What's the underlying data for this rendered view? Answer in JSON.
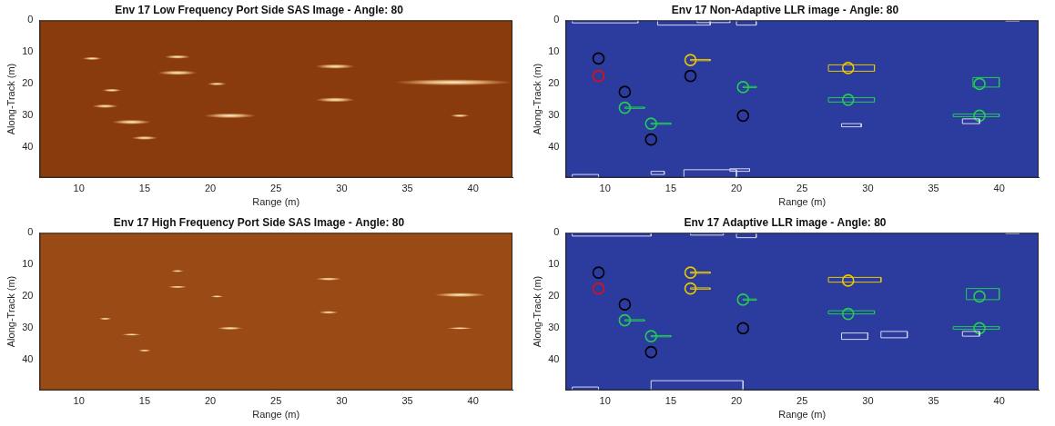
{
  "chart_data": [
    {
      "type": "image",
      "title": "Env 17 Low Frequency Port Side SAS Image - Angle: 80",
      "x_label": "Range (m)",
      "y_label": "Along-Track (m)",
      "xlim": [
        7,
        43
      ],
      "ylim": [
        49.5,
        0
      ],
      "xticks": [
        10,
        15,
        20,
        25,
        30,
        35,
        40
      ],
      "yticks": [
        0,
        10,
        20,
        30,
        40
      ],
      "grid": false,
      "highlights": [
        {
          "x": 11,
          "y": 12,
          "length": 1.5,
          "width": 1.0
        },
        {
          "x": 12.5,
          "y": 22,
          "length": 1.5,
          "width": 1.0
        },
        {
          "x": 12,
          "y": 27,
          "length": 2,
          "width": 1.2
        },
        {
          "x": 14,
          "y": 32,
          "length": 3,
          "width": 1.5
        },
        {
          "x": 15,
          "y": 37,
          "length": 2,
          "width": 1.2
        },
        {
          "x": 17.5,
          "y": 11.5,
          "length": 2,
          "width": 1.2
        },
        {
          "x": 17.5,
          "y": 16.5,
          "length": 3,
          "width": 1.5
        },
        {
          "x": 20.5,
          "y": 20,
          "length": 1.5,
          "width": 1.0
        },
        {
          "x": 21.5,
          "y": 30,
          "length": 4,
          "width": 1.6
        },
        {
          "x": 29.5,
          "y": 14.5,
          "length": 3,
          "width": 1.5
        },
        {
          "x": 29.5,
          "y": 25,
          "length": 3,
          "width": 1.5
        },
        {
          "x": 38.5,
          "y": 19.5,
          "length": 9,
          "width": 2.0
        },
        {
          "x": 39,
          "y": 30,
          "length": 1.5,
          "width": 1.0
        }
      ]
    },
    {
      "type": "scatter",
      "title": "Env 17 Non-Adaptive LLR image - Angle: 80",
      "x_label": "Range (m)",
      "y_label": "Along-Track (m)",
      "xlim": [
        7,
        43
      ],
      "ylim": [
        49.5,
        0
      ],
      "xticks": [
        10,
        15,
        20,
        25,
        30,
        35,
        40
      ],
      "yticks": [
        0,
        10,
        20,
        30,
        40
      ],
      "grid": false,
      "marker": "circle",
      "points": [
        {
          "x": 9.5,
          "y": 12,
          "color": "#000000"
        },
        {
          "x": 9.5,
          "y": 17.5,
          "color": "#e01010"
        },
        {
          "x": 11.5,
          "y": 22.5,
          "color": "#000000"
        },
        {
          "x": 11.5,
          "y": 27.5,
          "color": "#22cc55"
        },
        {
          "x": 13.5,
          "y": 32.5,
          "color": "#22cc55"
        },
        {
          "x": 13.5,
          "y": 37.5,
          "color": "#000000"
        },
        {
          "x": 16.5,
          "y": 12.5,
          "color": "#e8c800"
        },
        {
          "x": 16.5,
          "y": 17.5,
          "color": "#000000"
        },
        {
          "x": 20.5,
          "y": 21,
          "color": "#22cc55"
        },
        {
          "x": 20.5,
          "y": 30,
          "color": "#000000"
        },
        {
          "x": 28.5,
          "y": 15,
          "color": "#e8c800"
        },
        {
          "x": 28.5,
          "y": 25,
          "color": "#22cc55"
        },
        {
          "x": 38.5,
          "y": 20,
          "color": "#22cc55"
        },
        {
          "x": 38.5,
          "y": 30,
          "color": "#22cc55"
        }
      ],
      "boxes": [
        {
          "x": [
            7.5,
            12.5
          ],
          "y": [
            0,
            0.8
          ],
          "color": "#d8d8f0"
        },
        {
          "x": [
            14,
            18
          ],
          "y": [
            0,
            1.5
          ],
          "color": "#d8d8f0"
        },
        {
          "x": [
            17,
            19.5
          ],
          "y": [
            0,
            0.7
          ],
          "color": "#d8d8f0"
        },
        {
          "x": [
            20,
            21.5
          ],
          "y": [
            0,
            1.5
          ],
          "color": "#d8d8f0"
        },
        {
          "x": [
            40.5,
            41.5
          ],
          "y": [
            0,
            0.3
          ],
          "color": "#d8d8f0"
        },
        {
          "x": [
            11.5,
            13
          ],
          "y": [
            27.3,
            27.7
          ],
          "color": "#22cc55"
        },
        {
          "x": [
            13.5,
            15
          ],
          "y": [
            32.3,
            32.7
          ],
          "color": "#22cc55"
        },
        {
          "x": [
            16.5,
            18
          ],
          "y": [
            12.3,
            12.7
          ],
          "color": "#e8c800"
        },
        {
          "x": [
            20.5,
            21.5
          ],
          "y": [
            20.8,
            21.2
          ],
          "color": "#22cc55"
        },
        {
          "x": [
            27,
            30.5
          ],
          "y": [
            14,
            16
          ],
          "color": "#e8c800"
        },
        {
          "x": [
            27,
            30.5
          ],
          "y": [
            24.3,
            25.7
          ],
          "color": "#22cc55"
        },
        {
          "x": [
            38,
            40
          ],
          "y": [
            18,
            21
          ],
          "color": "#22cc55"
        },
        {
          "x": [
            36.5,
            40
          ],
          "y": [
            29.5,
            30.3
          ],
          "color": "#22cc55"
        },
        {
          "x": [
            28,
            29.5
          ],
          "y": [
            32.5,
            33.5
          ],
          "color": "#d8d8f0"
        },
        {
          "x": [
            37.2,
            38.5
          ],
          "y": [
            31,
            32.5
          ],
          "color": "#d8d8f0"
        },
        {
          "x": [
            7.5,
            9.5
          ],
          "y": [
            48.5,
            49.5
          ],
          "color": "#d8d8f0"
        },
        {
          "x": [
            13.5,
            14.5
          ],
          "y": [
            47.5,
            48.5
          ],
          "color": "#d8d8f0"
        },
        {
          "x": [
            16,
            20
          ],
          "y": [
            47,
            49.5
          ],
          "color": "#d8d8f0"
        },
        {
          "x": [
            19.5,
            21
          ],
          "y": [
            46.7,
            47.5
          ],
          "color": "#d8d8f0"
        }
      ]
    },
    {
      "type": "image",
      "title": "Env 17 High Frequency Port Side SAS Image - Angle: 80",
      "x_label": "Range (m)",
      "y_label": "Along-Track (m)",
      "xlim": [
        7,
        43
      ],
      "ylim": [
        49.5,
        0
      ],
      "xticks": [
        10,
        15,
        20,
        25,
        30,
        35,
        40
      ],
      "yticks": [
        0,
        10,
        20,
        30,
        40
      ],
      "grid": false,
      "highlights": [
        {
          "x": 12,
          "y": 27,
          "length": 1,
          "width": 0.8
        },
        {
          "x": 14,
          "y": 32,
          "length": 1.5,
          "width": 0.8
        },
        {
          "x": 15,
          "y": 37,
          "length": 1,
          "width": 0.8
        },
        {
          "x": 17.5,
          "y": 12,
          "length": 1,
          "width": 0.8
        },
        {
          "x": 17.5,
          "y": 17,
          "length": 1.5,
          "width": 0.8
        },
        {
          "x": 20.5,
          "y": 20,
          "length": 1,
          "width": 0.8
        },
        {
          "x": 21.5,
          "y": 30,
          "length": 2,
          "width": 1.0
        },
        {
          "x": 29,
          "y": 14.5,
          "length": 2,
          "width": 1.0
        },
        {
          "x": 29,
          "y": 25,
          "length": 1.5,
          "width": 1.0
        },
        {
          "x": 39,
          "y": 19.5,
          "length": 4,
          "width": 1.4
        },
        {
          "x": 39,
          "y": 30,
          "length": 2,
          "width": 0.8
        }
      ]
    },
    {
      "type": "scatter",
      "title": "Env 17 Adaptive LLR image - Angle: 80",
      "x_label": "Range (m)",
      "y_label": "Along-Track (m)",
      "xlim": [
        7,
        43
      ],
      "ylim": [
        49.5,
        0
      ],
      "xticks": [
        10,
        15,
        20,
        25,
        30,
        35,
        40
      ],
      "yticks": [
        0,
        10,
        20,
        30,
        40
      ],
      "grid": false,
      "marker": "circle",
      "points": [
        {
          "x": 9.5,
          "y": 12.5,
          "color": "#000000"
        },
        {
          "x": 9.5,
          "y": 17.5,
          "color": "#e01010"
        },
        {
          "x": 11.5,
          "y": 22.5,
          "color": "#000000"
        },
        {
          "x": 11.5,
          "y": 27.5,
          "color": "#22cc55"
        },
        {
          "x": 13.5,
          "y": 32.5,
          "color": "#22cc55"
        },
        {
          "x": 13.5,
          "y": 37.5,
          "color": "#000000"
        },
        {
          "x": 16.5,
          "y": 12.5,
          "color": "#e8c800"
        },
        {
          "x": 16.5,
          "y": 17.5,
          "color": "#e8c800"
        },
        {
          "x": 20.5,
          "y": 21,
          "color": "#22cc55"
        },
        {
          "x": 20.5,
          "y": 30,
          "color": "#000000"
        },
        {
          "x": 28.5,
          "y": 15,
          "color": "#e8c800"
        },
        {
          "x": 28.5,
          "y": 25.5,
          "color": "#22cc55"
        },
        {
          "x": 38.5,
          "y": 20,
          "color": "#22cc55"
        },
        {
          "x": 38.5,
          "y": 30,
          "color": "#22cc55"
        }
      ],
      "boxes": [
        {
          "x": [
            7.5,
            13.5
          ],
          "y": [
            0,
            1
          ],
          "color": "#d8d8f0"
        },
        {
          "x": [
            16.5,
            19
          ],
          "y": [
            0,
            0.7
          ],
          "color": "#d8d8f0"
        },
        {
          "x": [
            20,
            21.5
          ],
          "y": [
            0,
            1.5
          ],
          "color": "#d8d8f0"
        },
        {
          "x": [
            40.5,
            41.5
          ],
          "y": [
            0,
            0.3
          ],
          "color": "#d8d8f0"
        },
        {
          "x": [
            11.5,
            13
          ],
          "y": [
            27.3,
            27.7
          ],
          "color": "#22cc55"
        },
        {
          "x": [
            13.5,
            15
          ],
          "y": [
            32.3,
            32.7
          ],
          "color": "#22cc55"
        },
        {
          "x": [
            16.5,
            18
          ],
          "y": [
            12.3,
            12.7
          ],
          "color": "#e8c800"
        },
        {
          "x": [
            16.5,
            18
          ],
          "y": [
            17.3,
            17.7
          ],
          "color": "#e8c800"
        },
        {
          "x": [
            20.5,
            21.5
          ],
          "y": [
            20.8,
            21.2
          ],
          "color": "#22cc55"
        },
        {
          "x": [
            27,
            31
          ],
          "y": [
            14,
            15.5
          ],
          "color": "#e8c800"
        },
        {
          "x": [
            27,
            30.5
          ],
          "y": [
            24.5,
            25.5
          ],
          "color": "#22cc55"
        },
        {
          "x": [
            37.5,
            40
          ],
          "y": [
            17.5,
            21
          ],
          "color": "#22cc55"
        },
        {
          "x": [
            36.5,
            40
          ],
          "y": [
            29.5,
            30.3
          ],
          "color": "#22cc55"
        },
        {
          "x": [
            28,
            30
          ],
          "y": [
            31.5,
            33.5
          ],
          "color": "#d8d8f0"
        },
        {
          "x": [
            31,
            33
          ],
          "y": [
            31,
            33
          ],
          "color": "#d8d8f0"
        },
        {
          "x": [
            37.2,
            38.5
          ],
          "y": [
            31,
            32.5
          ],
          "color": "#d8d8f0"
        },
        {
          "x": [
            7.5,
            9.5
          ],
          "y": [
            48.5,
            49.5
          ],
          "color": "#d8d8f0"
        },
        {
          "x": [
            13.5,
            20.5
          ],
          "y": [
            46.5,
            49.5
          ],
          "color": "#d8d8f0"
        }
      ]
    }
  ]
}
